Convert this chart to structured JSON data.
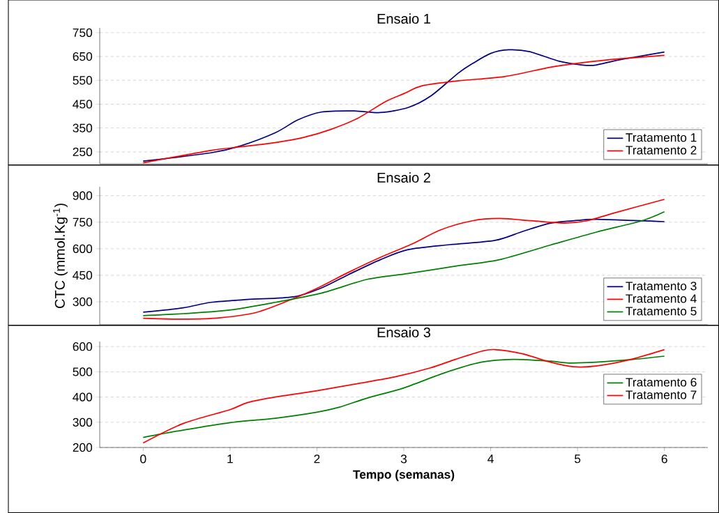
{
  "chart_data": [
    {
      "type": "line",
      "title": "Ensaio 1",
      "xlim": [
        -0.5,
        6.5
      ],
      "xticks": [
        0,
        1,
        2,
        3,
        4,
        5,
        6
      ],
      "ylim": [
        200,
        770
      ],
      "yticks": [
        250,
        350,
        450,
        550,
        650,
        750
      ],
      "grid": "y",
      "legend": "bottom right",
      "tick_labels": "y",
      "marker": "none",
      "series": [
        {
          "name": "Tratamento 1",
          "color": "#000080",
          "x": [
            0,
            0.78,
            1.12,
            1.52,
            1.78,
            2.05,
            2.42,
            2.73,
            3.05,
            3.31,
            3.63,
            3.79,
            4.0,
            4.21,
            4.45,
            4.79,
            5.06,
            5.21,
            5.48,
            6
          ],
          "values": [
            211,
            246,
            275,
            330,
            384,
            417,
            422,
            415,
            436,
            484,
            581,
            620,
            663,
            678,
            670,
            630,
            614,
            614,
            636,
            669
          ]
        },
        {
          "name": "Tratamento 2",
          "color": "#ff0000",
          "x": [
            0,
            0.78,
            1.12,
            1.52,
            1.84,
            2.15,
            2.47,
            2.79,
            3.0,
            3.21,
            3.63,
            4.16,
            4.69,
            5.06,
            5.48,
            6
          ],
          "values": [
            204,
            256,
            271,
            289,
            310,
            343,
            391,
            461,
            494,
            527,
            548,
            566,
            605,
            624,
            640,
            655
          ]
        }
      ]
    },
    {
      "type": "line",
      "title": "Ensaio 2",
      "ylabel": "CTC (mmol.Kg$^{-1}$)",
      "xlim": [
        -0.5,
        6.5
      ],
      "xticks": [
        0,
        1,
        2,
        3,
        4,
        5,
        6
      ],
      "ylim": [
        170,
        950
      ],
      "yticks": [
        300,
        450,
        600,
        750,
        900
      ],
      "grid": "y",
      "legend": "bottom right",
      "tick_labels": "y",
      "marker": "none",
      "series": [
        {
          "name": "Tratamento 3",
          "color": "#000080",
          "x": [
            0,
            0.46,
            0.78,
            1.2,
            1.73,
            2.05,
            2.36,
            2.73,
            3.05,
            3.53,
            4.05,
            4.37,
            4.69,
            5.0,
            5.21,
            6
          ],
          "values": [
            241,
            266,
            297,
            313,
            328,
            378,
            453,
            538,
            595,
            623,
            647,
            698,
            745,
            760,
            766,
            753
          ]
        },
        {
          "name": "Tratamento 4",
          "color": "#ff0000",
          "x": [
            0,
            0.46,
            0.89,
            1.31,
            1.73,
            2.05,
            2.36,
            2.73,
            3.1,
            3.42,
            3.79,
            4.1,
            4.47,
            4.84,
            5.11,
            5.42,
            6
          ],
          "values": [
            207,
            202,
            210,
            241,
            318,
            388,
            466,
            551,
            628,
            706,
            758,
            771,
            758,
            745,
            758,
            802,
            879
          ]
        },
        {
          "name": "Tratamento 5",
          "color": "#008000",
          "x": [
            0,
            0.46,
            0.99,
            1.52,
            2.05,
            2.58,
            3.05,
            3.63,
            4.1,
            4.69,
            5.21,
            5.74,
            6
          ],
          "values": [
            222,
            233,
            253,
            297,
            349,
            427,
            460,
            504,
            538,
            621,
            693,
            758,
            809
          ]
        }
      ]
    },
    {
      "type": "line",
      "title": "Ensaio 3",
      "xlabel": "Tempo (semanas)",
      "xlim": [
        -0.5,
        6.5
      ],
      "xticks": [
        0,
        1,
        2,
        3,
        4,
        5,
        6
      ],
      "ylim": [
        200,
        620
      ],
      "yticks": [
        200,
        300,
        400,
        500,
        600
      ],
      "grid": "y",
      "legend": "right",
      "marker": "none",
      "series": [
        {
          "name": "Tratamento 6",
          "color": "#008000",
          "x": [
            0,
            0.46,
            0.99,
            1.52,
            2.0,
            2.26,
            2.58,
            3.0,
            3.47,
            3.89,
            4.26,
            4.69,
            4.9,
            5.21,
            5.64,
            6
          ],
          "values": [
            240,
            269,
            298,
            316,
            340,
            360,
            396,
            436,
            496,
            538,
            549,
            542,
            535,
            538,
            549,
            562
          ]
        },
        {
          "name": "Tratamento 7",
          "color": "#ff0000",
          "x": [
            0,
            0.46,
            1,
            1.2,
            1.52,
            2,
            2.5,
            2.9,
            3.3,
            3.6,
            3.9,
            4.05,
            4.36,
            4.69,
            4.95,
            5.21,
            5.6,
            6
          ],
          "values": [
            218,
            295,
            350,
            378,
            400,
            425,
            455,
            480,
            515,
            550,
            582,
            588,
            572,
            538,
            520,
            523,
            548,
            588
          ]
        }
      ]
    }
  ]
}
